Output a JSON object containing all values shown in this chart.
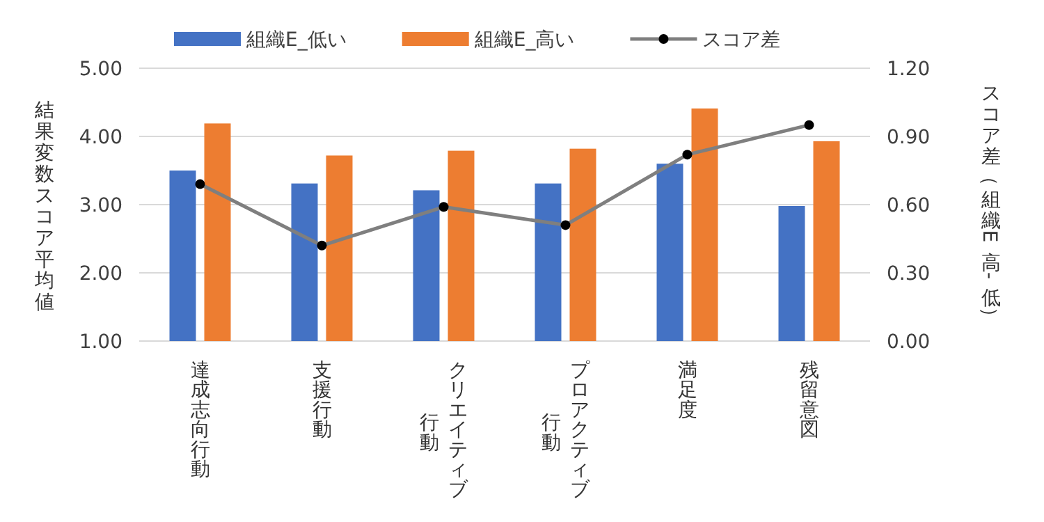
{
  "chart_data": {
    "type": "bar",
    "categories": [
      "達成志向行動",
      "支援行動",
      "クリエイティブ行動",
      "プロアクティブ行動",
      "満足度",
      "残留意図"
    ],
    "series": [
      {
        "name": "組織E_低い",
        "color": "#4472c4",
        "values": [
          3.5,
          3.31,
          3.21,
          3.31,
          3.6,
          2.98
        ]
      },
      {
        "name": "組織E_高い",
        "color": "#ed7d31",
        "values": [
          4.19,
          3.72,
          3.79,
          3.82,
          4.41,
          3.93
        ]
      },
      {
        "name": "スコア差",
        "type": "line",
        "axis": "y2",
        "color": "#7f7f7f",
        "marker": "circle",
        "values": [
          0.69,
          0.42,
          0.59,
          0.51,
          0.82,
          0.95
        ]
      }
    ],
    "ylabel": "結果変数スコア平均値",
    "y2label": "スコア差（組織E 高-低）",
    "ylim": [
      1,
      5
    ],
    "yticks": [
      {
        "value": 1,
        "label": "1.00"
      },
      {
        "value": 2,
        "label": "2.00"
      },
      {
        "value": 3,
        "label": "3.00"
      },
      {
        "value": 4,
        "label": "4.00"
      },
      {
        "value": 5,
        "label": "5.00"
      }
    ],
    "y2lim": [
      0,
      1.2
    ],
    "y2ticks": [
      {
        "value": 0,
        "label": "0.00"
      },
      {
        "value": 0.3,
        "label": "0.30"
      },
      {
        "value": 0.6,
        "label": "0.60"
      },
      {
        "value": 0.9,
        "label": "0.90"
      },
      {
        "value": 1.2,
        "label": "1.20"
      }
    ],
    "grid": "y",
    "legend": "top"
  }
}
